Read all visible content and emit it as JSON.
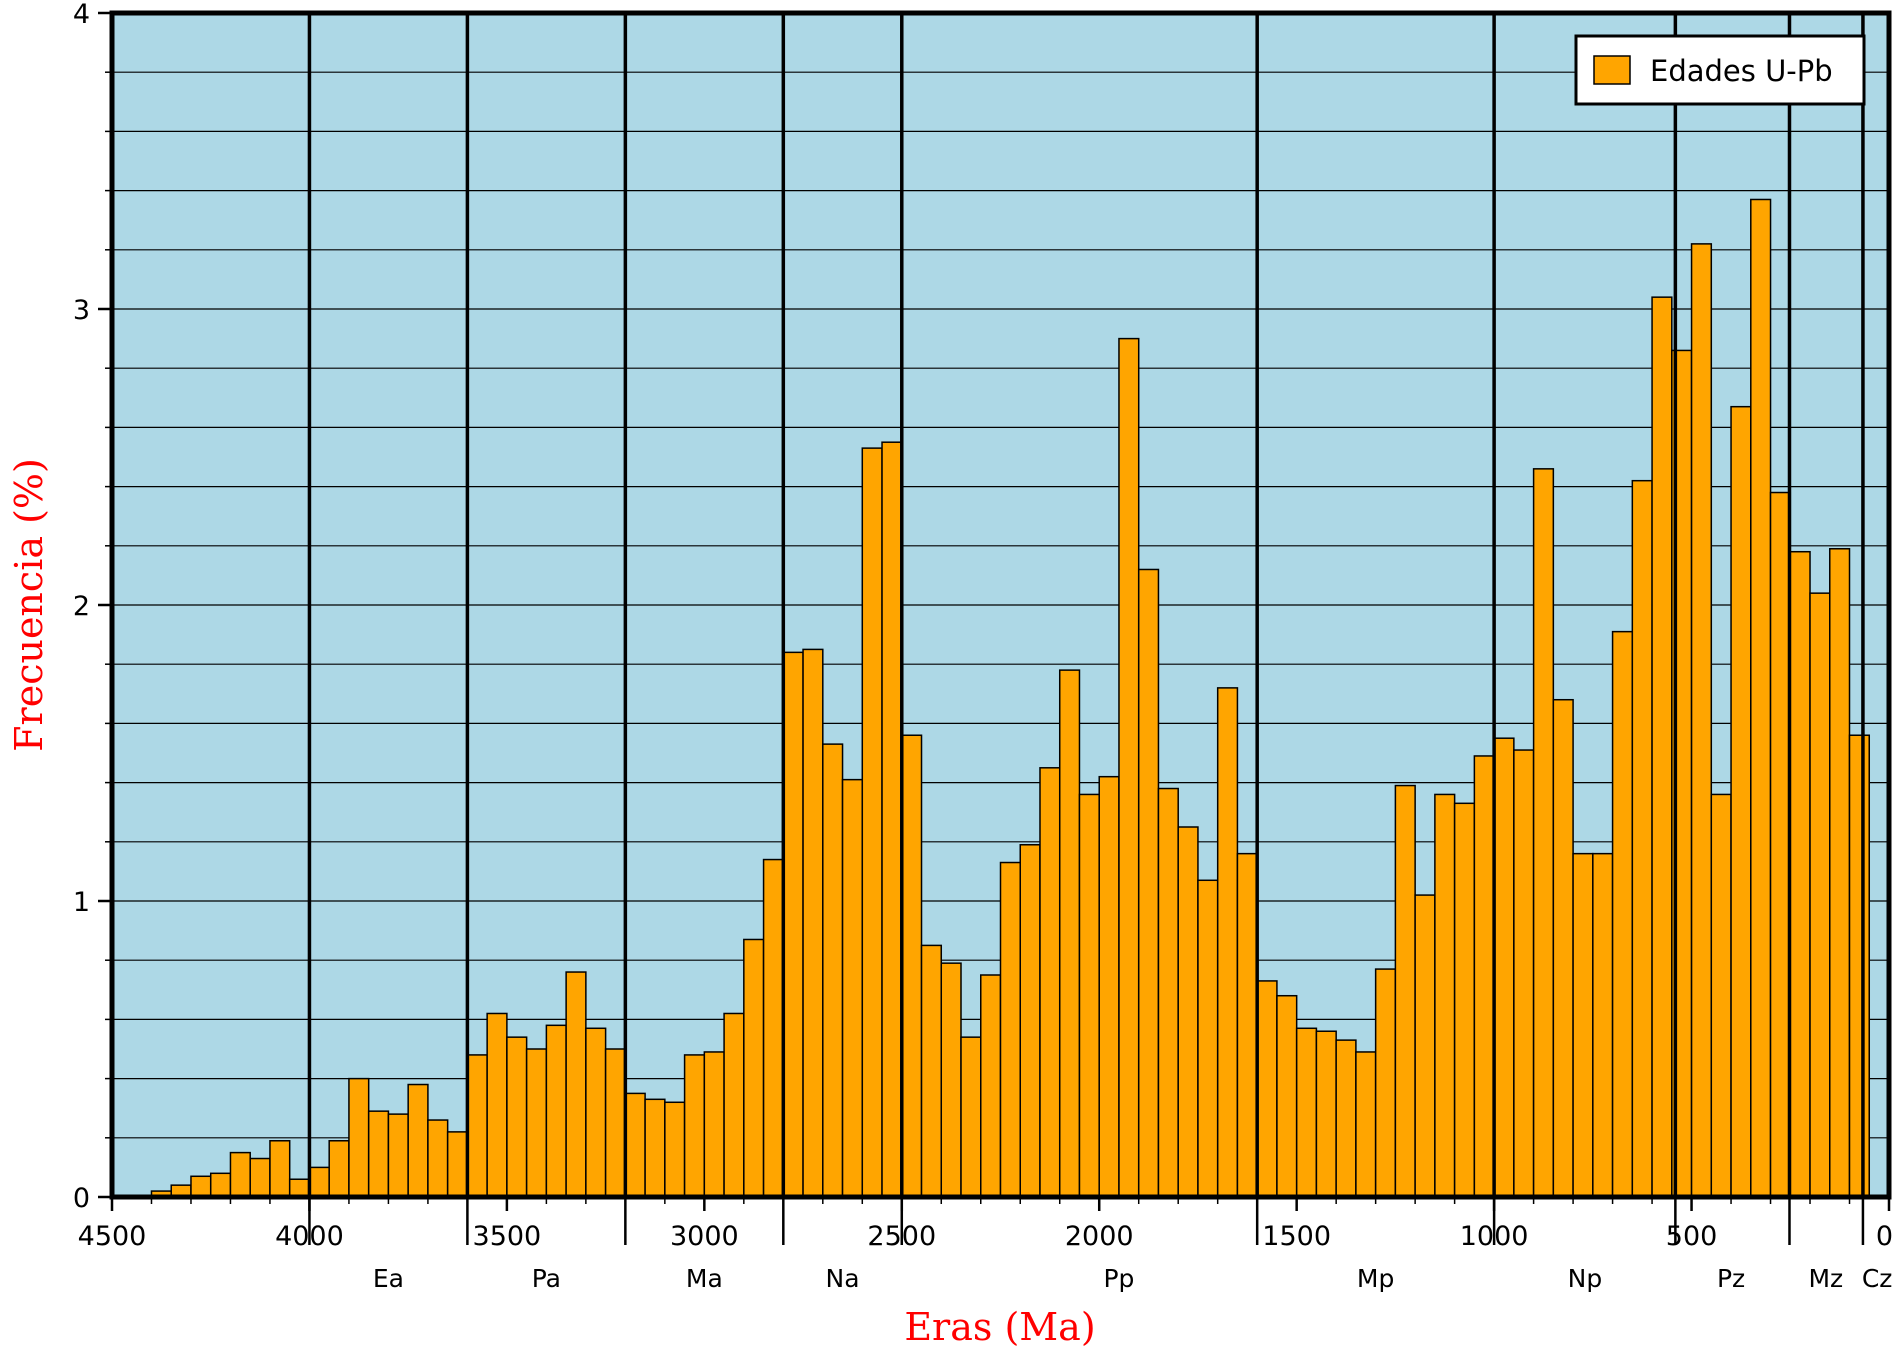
{
  "chart_data": {
    "type": "bar",
    "title": "",
    "xlabel": "Eras (Ma)",
    "ylabel": "Frecuencia (%)",
    "xlim": [
      4500,
      0
    ],
    "ylim": [
      0,
      4
    ],
    "x_reversed": true,
    "bin_width": 50,
    "grid": "horizontal",
    "legend_position": "top-right",
    "colors": {
      "plot_background": "#add8e6",
      "bar_fill": "#ffa500",
      "bar_edge": "#000000",
      "label_color": "#ff0000"
    },
    "x_ticks": [
      "4500",
      "4000",
      "3500",
      "3000",
      "2500",
      "2000",
      "1500",
      "1000",
      "500",
      "0"
    ],
    "x_tick_values": [
      4500,
      4000,
      3500,
      3000,
      2500,
      2000,
      1500,
      1000,
      500,
      0
    ],
    "y_ticks": [
      "0",
      "1",
      "2",
      "3",
      "4"
    ],
    "y_tick_values": [
      0,
      1,
      2,
      3,
      4
    ],
    "era_boundaries": [
      4000,
      3600,
      3200,
      2800,
      2500,
      1600,
      1000,
      541,
      252,
      66
    ],
    "era_labels": [
      {
        "label": "Ea",
        "x": 3800
      },
      {
        "label": "Pa",
        "x": 3400
      },
      {
        "label": "Ma",
        "x": 3000
      },
      {
        "label": "Na",
        "x": 2650
      },
      {
        "label": "Pp",
        "x": 1950
      },
      {
        "label": "Mp",
        "x": 1300
      },
      {
        "label": "Np",
        "x": 770
      },
      {
        "label": "Pz",
        "x": 400
      },
      {
        "label": "Mz",
        "x": 160
      },
      {
        "label": "Cz",
        "x": 30
      }
    ],
    "series": [
      {
        "name": "Edades U-Pb",
        "bin_starts": [
          4350,
          4300,
          4250,
          4200,
          4150,
          4100,
          4050,
          4000,
          3950,
          3900,
          3850,
          3800,
          3750,
          3700,
          3650,
          3600,
          3550,
          3500,
          3450,
          3400,
          3350,
          3300,
          3250,
          3200,
          3150,
          3100,
          3050,
          3000,
          2950,
          2900,
          2850,
          2800,
          2750,
          2700,
          2650,
          2600,
          2550,
          2500,
          2450,
          2400,
          2350,
          2300,
          2250,
          2200,
          2150,
          2100,
          2050,
          2000,
          1950,
          1900,
          1850,
          1800,
          1750,
          1700,
          1650,
          1600,
          1550,
          1500,
          1450,
          1400,
          1350,
          1300,
          1250,
          1200,
          1150,
          1100,
          1050,
          1000,
          950,
          900,
          850,
          800,
          750,
          700,
          650,
          600,
          550,
          500,
          450,
          400,
          350,
          300,
          250,
          200,
          150,
          100,
          50,
          0
        ],
        "values": [
          0.02,
          0.04,
          0.07,
          0.08,
          0.15,
          0.13,
          0.19,
          0.06,
          0.1,
          0.19,
          0.4,
          0.29,
          0.28,
          0.38,
          0.26,
          0.22,
          0.48,
          0.62,
          0.54,
          0.5,
          0.58,
          0.76,
          0.57,
          0.5,
          0.35,
          0.33,
          0.32,
          0.48,
          0.49,
          0.62,
          0.87,
          1.14,
          1.84,
          1.85,
          1.53,
          1.41,
          2.53,
          2.55,
          1.56,
          0.85,
          0.79,
          0.54,
          0.75,
          1.13,
          1.19,
          1.45,
          1.78,
          1.36,
          1.42,
          2.9,
          2.12,
          1.38,
          1.25,
          1.07,
          1.72,
          1.16,
          0.73,
          0.68,
          0.57,
          0.56,
          0.53,
          0.49,
          0.77,
          1.39,
          1.02,
          1.36,
          1.33,
          1.49,
          1.55,
          1.51,
          2.46,
          1.68,
          1.16,
          1.16,
          1.91,
          2.42,
          3.04,
          2.86,
          3.22,
          1.36,
          2.67,
          3.37,
          2.38,
          2.18,
          2.04,
          2.19,
          1.56,
          0
        ]
      }
    ]
  }
}
